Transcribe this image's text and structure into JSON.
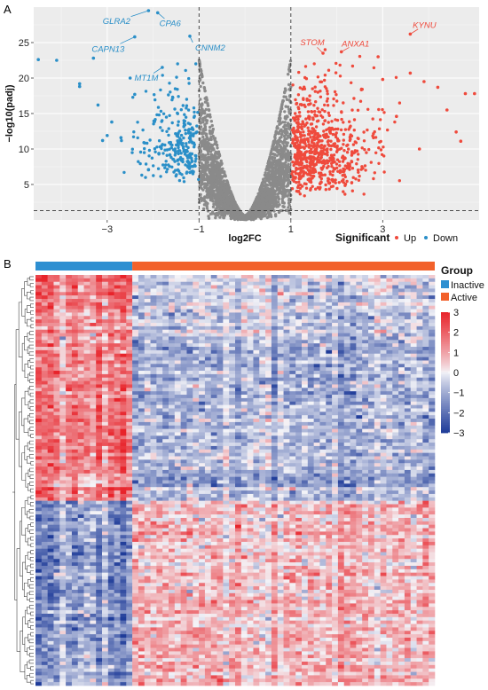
{
  "panels": {
    "a": "A",
    "b": "B"
  },
  "colors": {
    "up": "#ef4a3c",
    "down": "#2a8fc8",
    "ns": "#8a8a8a",
    "inactive": "#2e8fd1",
    "active": "#f2612b",
    "heat_low": "#1f3c99",
    "heat_mid": "#f4f4f8",
    "heat_high": "#e8232a"
  },
  "chart_data": [
    {
      "type": "scatter",
      "xlabel": "log2FC",
      "ylabel": "−log10(padj)",
      "xlim": [
        -4.6,
        5.1
      ],
      "ylim": [
        0,
        30
      ],
      "x_ticks": [
        -3,
        -1,
        1,
        3
      ],
      "x_tick_labels": [
        "−3",
        "−1",
        "1",
        "3"
      ],
      "y_ticks": [
        5,
        10,
        15,
        20,
        25
      ],
      "y_tick_labels": [
        "5",
        "10",
        "15",
        "20",
        "25"
      ],
      "vlines": [
        -1,
        1
      ],
      "hline": 1.3,
      "grid": true,
      "legend": {
        "title": "Significant",
        "placement": "bottom-right",
        "entries": [
          {
            "name": "Up",
            "color": "#ef4a3c"
          },
          {
            "name": "Down",
            "color": "#2a8fc8"
          }
        ]
      },
      "labeled_genes": [
        {
          "name": "GLRA2",
          "x": -2.1,
          "y": 29.5,
          "group": "down"
        },
        {
          "name": "CPA6",
          "x": -1.9,
          "y": 29.2,
          "group": "down"
        },
        {
          "name": "CAPN13",
          "x": -2.4,
          "y": 25.8,
          "group": "down"
        },
        {
          "name": "CNNM2",
          "x": -1.2,
          "y": 25.9,
          "group": "down"
        },
        {
          "name": "MT1M",
          "x": -1.8,
          "y": 21.5,
          "group": "down"
        },
        {
          "name": "STOM",
          "x": 1.7,
          "y": 23.5,
          "group": "up"
        },
        {
          "name": "ANXA1",
          "x": 2.1,
          "y": 23.7,
          "group": "up"
        },
        {
          "name": "KYNU",
          "x": 3.6,
          "y": 26.2,
          "group": "up"
        }
      ],
      "outlier_points": {
        "down": [
          [
            -4.5,
            22.6
          ],
          [
            -4.1,
            22.5
          ],
          [
            -3.6,
            19.2
          ],
          [
            -3.6,
            18.8
          ],
          [
            -3.3,
            22.8
          ],
          [
            -3.2,
            16.2
          ],
          [
            -3.0,
            11.9
          ],
          [
            -3.1,
            11.2
          ],
          [
            -2.9,
            13.8
          ],
          [
            -2.7,
            11.6
          ],
          [
            -2.5,
            20.0
          ],
          [
            -2.4,
            17.7
          ],
          [
            -2.2,
            10.9
          ],
          [
            -2.1,
            7.1
          ]
        ],
        "up": [
          [
            2.9,
            23.0
          ],
          [
            3.0,
            19.8
          ],
          [
            3.6,
            20.7
          ],
          [
            3.9,
            19.5
          ],
          [
            4.2,
            18.7
          ],
          [
            4.4,
            15.5
          ],
          [
            4.6,
            12.4
          ],
          [
            4.7,
            11.1
          ],
          [
            4.8,
            17.8
          ],
          [
            5.0,
            17.8
          ],
          [
            3.8,
            10.0
          ],
          [
            3.3,
            14.6
          ]
        ]
      }
    },
    {
      "type": "heatmap",
      "color_scale": {
        "min": -3,
        "max": 3,
        "ticks": [
          3,
          2,
          1,
          0,
          -1,
          -2,
          -3
        ],
        "tick_labels": [
          "3",
          "2",
          "1",
          "0",
          "−1",
          "−2",
          "−3"
        ]
      },
      "columns": {
        "inactive": 16,
        "active": 50
      },
      "rows": 120,
      "row_blocks": [
        {
          "rows": 10,
          "inactive_mean": 1.8,
          "active_mean": -0.4
        },
        {
          "rows": 10,
          "inactive_mean": 1.2,
          "active_mean": -0.6
        },
        {
          "rows": 46,
          "inactive_mean": 1.6,
          "active_mean": -0.9
        },
        {
          "rows": 54,
          "inactive_mean": -1.4,
          "active_mean": 0.7
        }
      ],
      "legend": {
        "title": "Group",
        "placement": "right",
        "entries": [
          {
            "name": "Inactive",
            "color": "#2e8fd1"
          },
          {
            "name": "Active",
            "color": "#f2612b"
          }
        ]
      }
    }
  ]
}
